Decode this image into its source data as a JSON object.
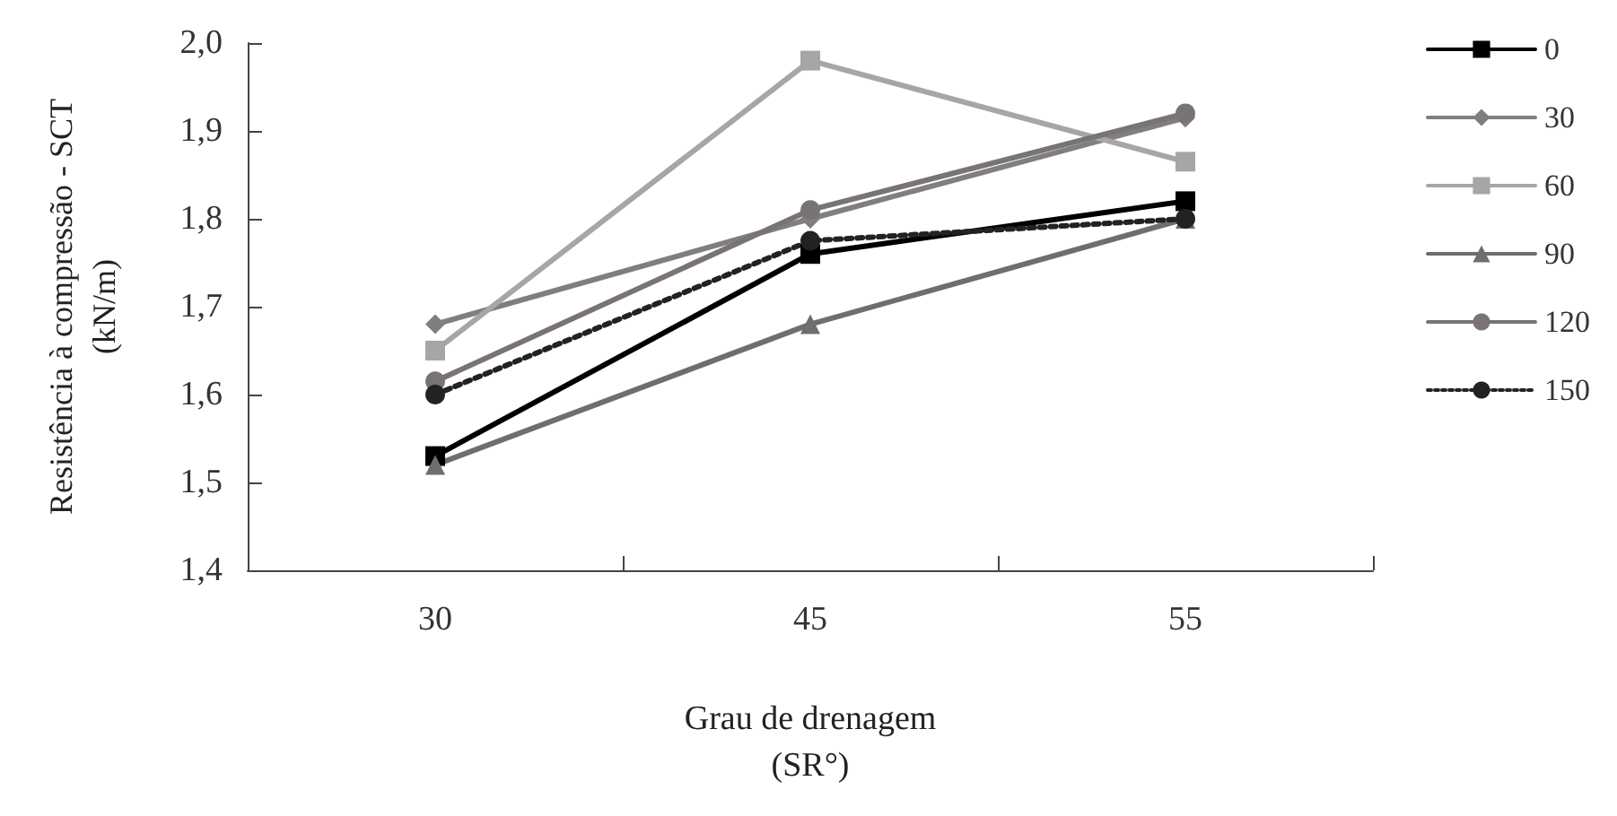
{
  "chart_data": {
    "type": "line",
    "xlabel": "Grau de drenagem\n(SR°)",
    "ylabel": "Resistência à compressão - SCT\n(kN/m)",
    "categories": [
      "30",
      "45",
      "55"
    ],
    "series": [
      {
        "name": "0",
        "color": "#000000",
        "marker": "square",
        "values": [
          1.53,
          1.76,
          1.82
        ]
      },
      {
        "name": "30",
        "color": "#7f7f7f",
        "marker": "diamond",
        "values": [
          1.68,
          1.8,
          1.915
        ]
      },
      {
        "name": "60",
        "color": "#a6a6a6",
        "marker": "square",
        "values": [
          1.65,
          1.98,
          1.865
        ]
      },
      {
        "name": "90",
        "color": "#6e6e6e",
        "marker": "triangle",
        "values": [
          1.52,
          1.68,
          1.8
        ]
      },
      {
        "name": "120",
        "color": "#7a7373",
        "marker": "circle",
        "values": [
          1.615,
          1.81,
          1.92
        ]
      },
      {
        "name": "150",
        "color": "#222222",
        "marker": "circle",
        "line_style": "dotted",
        "values": [
          1.6,
          1.775,
          1.8
        ]
      }
    ],
    "ylim": [
      1.4,
      2.0
    ],
    "yticks": [
      {
        "value": 1.4,
        "label": "1,4"
      },
      {
        "value": 1.5,
        "label": "1,5"
      },
      {
        "value": 1.6,
        "label": "1,6"
      },
      {
        "value": 1.7,
        "label": "1,7"
      },
      {
        "value": 1.8,
        "label": "1,8"
      },
      {
        "value": 1.9,
        "label": "1,9"
      },
      {
        "value": 2.0,
        "label": "2,0"
      }
    ],
    "grid": false,
    "legend": "right"
  }
}
